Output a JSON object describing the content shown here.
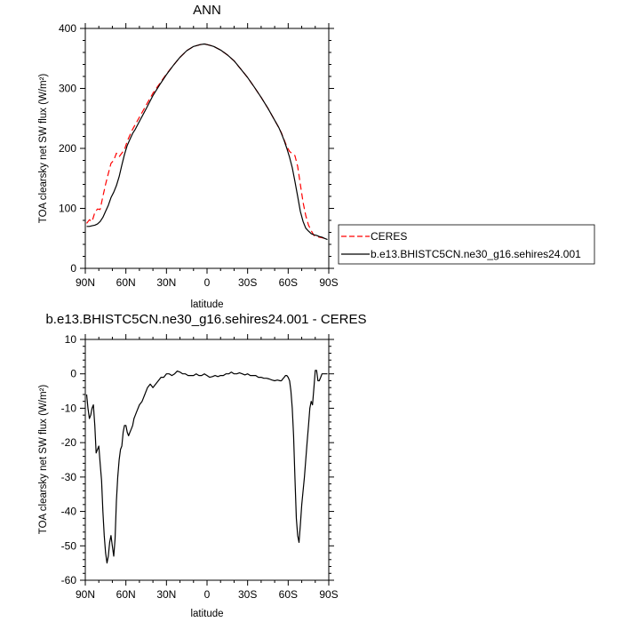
{
  "chart_data": [
    {
      "type": "line",
      "title": "ANN",
      "xlabel": "latitude",
      "ylabel": "TOA clearsky net SW flux (W/m²)",
      "xlim": [
        90,
        -90
      ],
      "ylim": [
        0,
        400
      ],
      "xticks": [
        {
          "value": 90,
          "label": "90N"
        },
        {
          "value": 60,
          "label": "60N"
        },
        {
          "value": 30,
          "label": "30N"
        },
        {
          "value": 0,
          "label": "0"
        },
        {
          "value": -30,
          "label": "30S"
        },
        {
          "value": -60,
          "label": "60S"
        },
        {
          "value": -90,
          "label": "90S"
        }
      ],
      "yticks": [
        0,
        100,
        200,
        300,
        400
      ],
      "legend": {
        "placement": "right, outside plot"
      },
      "series": [
        {
          "name": "CERES",
          "color": "#ff0000",
          "dash": "dashed",
          "x": [
            89,
            87,
            85,
            83,
            81,
            79,
            77,
            75,
            73,
            71,
            69,
            67,
            65,
            63,
            61,
            59,
            57,
            55,
            53,
            50,
            45,
            40,
            35,
            30,
            25,
            20,
            15,
            10,
            5,
            2,
            0,
            -2,
            -5,
            -10,
            -15,
            -20,
            -25,
            -30,
            -35,
            -40,
            -45,
            -50,
            -53,
            -55,
            -57,
            -59,
            -61,
            -63,
            -65,
            -67,
            -69,
            -71,
            -73,
            -75,
            -77,
            -79,
            -81,
            -83,
            -85,
            -87,
            -89
          ],
          "y": [
            75,
            81,
            78,
            93,
            99,
            98,
            120,
            140,
            158,
            175,
            180,
            192,
            186,
            192,
            198,
            212,
            222,
            232,
            240,
            252,
            272,
            292,
            308,
            324,
            338,
            352,
            363,
            370,
            373,
            374,
            373,
            372,
            370,
            364,
            356,
            346,
            332,
            318,
            302,
            285,
            267,
            247,
            235,
            226,
            214,
            203,
            195,
            191,
            188,
            170,
            140,
            110,
            88,
            72,
            63,
            55,
            53,
            52,
            51,
            50,
            49
          ]
        },
        {
          "name": "b.e13.BHISTC5CN.ne30_g16.sehires24.001",
          "color": "#000000",
          "dash": "solid",
          "x": [
            89,
            87,
            85,
            83,
            81,
            79,
            77,
            75,
            73,
            71,
            69,
            67,
            65,
            63,
            61,
            59,
            57,
            55,
            53,
            50,
            45,
            40,
            35,
            30,
            25,
            20,
            15,
            10,
            5,
            2,
            0,
            -2,
            -5,
            -10,
            -15,
            -20,
            -25,
            -30,
            -35,
            -40,
            -45,
            -50,
            -53,
            -55,
            -57,
            -59,
            -61,
            -63,
            -65,
            -67,
            -69,
            -71,
            -73,
            -75,
            -77,
            -79,
            -81,
            -83,
            -85,
            -87,
            -89
          ],
          "y": [
            70,
            70,
            71,
            72,
            74,
            78,
            85,
            95,
            105,
            118,
            127,
            138,
            153,
            172,
            190,
            205,
            215,
            225,
            232,
            245,
            266,
            288,
            306,
            323,
            338,
            352,
            363,
            370,
            373,
            374,
            373,
            372,
            370,
            364,
            356,
            346,
            332,
            318,
            302,
            285,
            267,
            247,
            235,
            225,
            213,
            200,
            185,
            168,
            145,
            120,
            95,
            78,
            67,
            62,
            58,
            56,
            55,
            53,
            52,
            50,
            48
          ]
        }
      ]
    },
    {
      "type": "line",
      "title": "b.e13.BHISTC5CN.ne30_g16.sehires24.001 - CERES",
      "xlabel": "latitude",
      "ylabel": "TOA clearsky net SW flux (W/m²)",
      "xlim": [
        90,
        -90
      ],
      "ylim": [
        -60,
        10
      ],
      "xticks": [
        {
          "value": 90,
          "label": "90N"
        },
        {
          "value": 60,
          "label": "60N"
        },
        {
          "value": 30,
          "label": "30N"
        },
        {
          "value": 0,
          "label": "0"
        },
        {
          "value": -30,
          "label": "30S"
        },
        {
          "value": -60,
          "label": "60S"
        },
        {
          "value": -90,
          "label": "90S"
        }
      ],
      "yticks": [
        -60,
        -50,
        -40,
        -30,
        -20,
        -10,
        0,
        10
      ],
      "series": [
        {
          "color": "#000000",
          "x": [
            89,
            88,
            87,
            86,
            85,
            84,
            83,
            82,
            81,
            80,
            79,
            78,
            77,
            76,
            75,
            74,
            73,
            72,
            71,
            70,
            69,
            68,
            67,
            66,
            65,
            64,
            63,
            62,
            61,
            60,
            59,
            58,
            57,
            56,
            55,
            54,
            53,
            52,
            51,
            50,
            48,
            46,
            44,
            42,
            40,
            38,
            36,
            34,
            32,
            30,
            28,
            26,
            24,
            22,
            20,
            18,
            16,
            14,
            12,
            10,
            8,
            6,
            4,
            2,
            0,
            -2,
            -4,
            -6,
            -8,
            -10,
            -12,
            -14,
            -16,
            -18,
            -20,
            -22,
            -24,
            -26,
            -28,
            -30,
            -32,
            -34,
            -36,
            -38,
            -40,
            -42,
            -44,
            -46,
            -48,
            -50,
            -52,
            -54,
            -55,
            -56,
            -57,
            -58,
            -59,
            -60,
            -61,
            -62,
            -63,
            -64,
            -65,
            -66,
            -67,
            -68,
            -69,
            -70,
            -71,
            -72,
            -73,
            -74,
            -75,
            -76,
            -77,
            -78,
            -79,
            -80,
            -81,
            -82,
            -83,
            -84,
            -85,
            -86,
            -87,
            -88,
            -89
          ],
          "y": [
            -6,
            -10,
            -13,
            -12,
            -10,
            -9,
            -15,
            -23,
            -22,
            -21,
            -26,
            -31,
            -40,
            -47,
            -52,
            -55,
            -53,
            -49,
            -47,
            -50,
            -53,
            -48,
            -37,
            -30,
            -25,
            -22,
            -21,
            -17,
            -15,
            -15,
            -17,
            -18,
            -17,
            -16,
            -15,
            -13,
            -12,
            -11,
            -10,
            -9,
            -8,
            -6,
            -4,
            -3,
            -4,
            -3,
            -2,
            -1,
            -1,
            0,
            0,
            -0.5,
            0,
            0.8,
            0.5,
            0,
            0,
            -0.5,
            -0.5,
            -0.5,
            0,
            -0.5,
            -0.5,
            0,
            -0.5,
            -1,
            -0.8,
            -0.5,
            -0.8,
            -0.5,
            -0.5,
            0,
            0,
            0.5,
            0,
            0,
            0.3,
            0,
            -0.3,
            0,
            -0.5,
            -0.5,
            -0.5,
            -1,
            -1,
            -1.3,
            -1.3,
            -1.5,
            -1.8,
            -2,
            -1.8,
            -2,
            -2,
            -1.5,
            -1,
            -0.5,
            -0.5,
            -1,
            -2,
            -5,
            -10,
            -18,
            -30,
            -42,
            -47,
            -49,
            -44,
            -38,
            -34,
            -30,
            -25,
            -20,
            -15,
            -10,
            -8,
            -9,
            -4,
            1,
            1,
            -2,
            -2,
            -1,
            0,
            0,
            0,
            0,
            0
          ]
        }
      ]
    }
  ]
}
